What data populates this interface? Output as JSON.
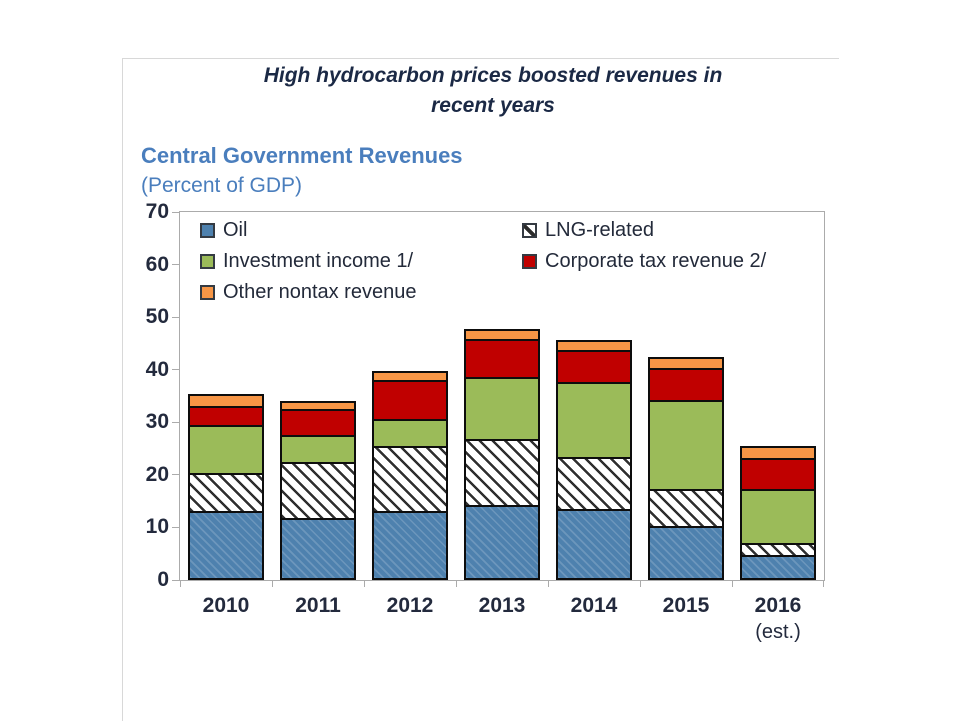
{
  "figure_title": {
    "line1": "High hydrocarbon prices  boosted revenues in",
    "line2": "recent years"
  },
  "chart_header": {
    "title": "Central Government Revenues",
    "subtitle": "(Percent of GDP)"
  },
  "colors": {
    "header_blue": "#4a7ebd",
    "axis_frame": "#ababab",
    "text_dark": "#232a3d",
    "segment_outline": "#0d0d0d"
  },
  "chart_data": {
    "type": "bar",
    "stacked": true,
    "title": "Central Government Revenues",
    "subtitle": "(Percent of GDP)",
    "categories": [
      "2010",
      "2011",
      "2012",
      "2013",
      "2014",
      "2015",
      "2016"
    ],
    "category_sublabels": [
      "",
      "",
      "",
      "",
      "",
      "",
      "(est.)"
    ],
    "series": [
      {
        "name": "Oil",
        "color": "#4e81ae",
        "pattern": "blue-texture",
        "values": [
          13.2,
          11.8,
          13.1,
          14.3,
          13.5,
          10.3,
          4.8
        ]
      },
      {
        "name": "LNG-related",
        "color": "#ffffff",
        "pattern": "diagonal-hatch",
        "values": [
          7.2,
          10.7,
          12.3,
          12.6,
          9.9,
          7.0,
          2.3
        ]
      },
      {
        "name": "Investment income 1/",
        "color": "#9bbb59",
        "values": [
          9.1,
          5.0,
          5.2,
          11.7,
          14.2,
          17.0,
          10.3
        ]
      },
      {
        "name": "Corporate tax revenue 2/",
        "color": "#c00000",
        "values": [
          3.6,
          5.0,
          7.4,
          7.2,
          6.2,
          6.0,
          5.8
        ]
      },
      {
        "name": "Other nontax revenue",
        "color": "#f79646",
        "values": [
          2.2,
          1.5,
          1.7,
          2.0,
          1.9,
          2.1,
          2.3
        ]
      }
    ],
    "totals": [
      35.3,
      34.0,
      39.7,
      47.8,
      45.7,
      42.4,
      25.5
    ],
    "ylim": [
      0,
      70
    ],
    "ytick_step": 10,
    "grid": false,
    "legend_position": "top-inside-two-columns"
  }
}
